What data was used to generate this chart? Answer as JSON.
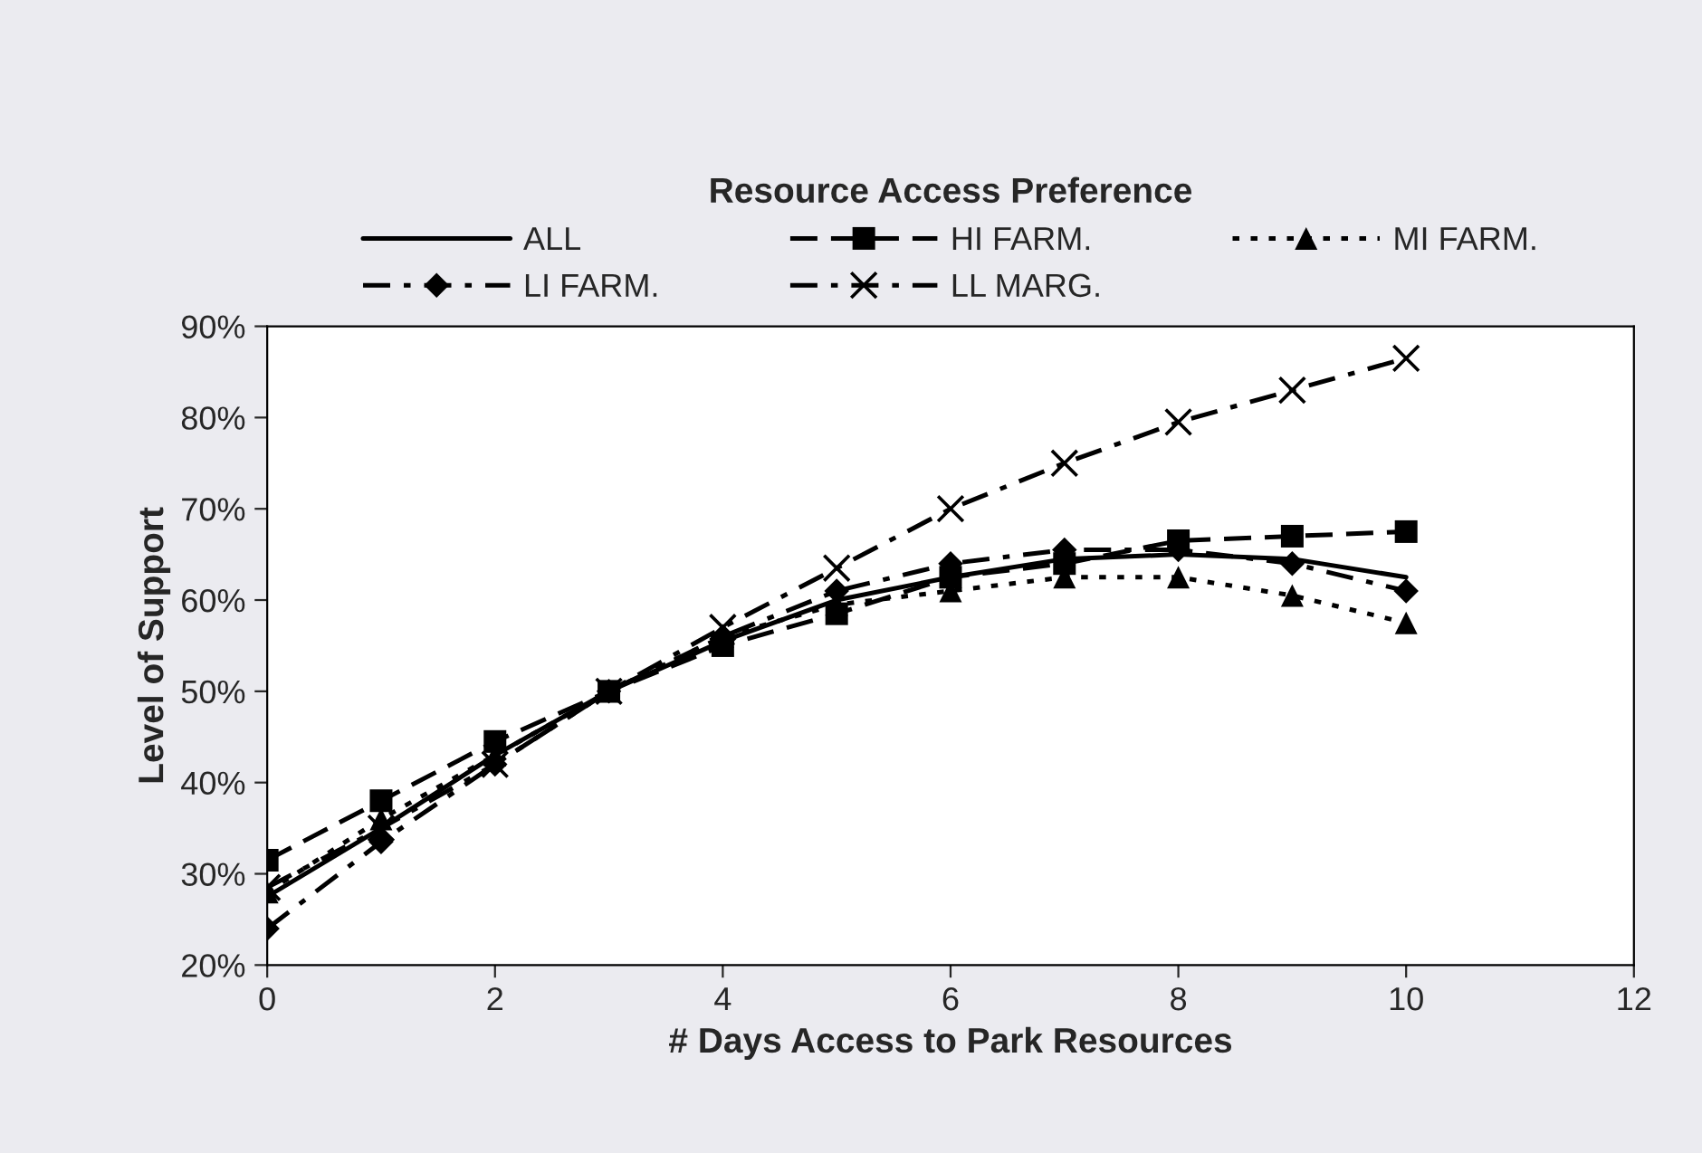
{
  "chart_data": {
    "type": "line",
    "legend_title": "Resource Access Preference",
    "xlabel": "# Days Access to Park Resources",
    "ylabel": "Level of Support",
    "x": [
      0,
      1,
      2,
      3,
      4,
      5,
      6,
      7,
      8,
      9,
      10
    ],
    "xlim": [
      0,
      12
    ],
    "xticks": [
      0,
      2,
      4,
      6,
      8,
      10,
      12
    ],
    "ylim": [
      20,
      90
    ],
    "yticks": [
      {
        "value": 20,
        "label": "20%"
      },
      {
        "value": 30,
        "label": "30%"
      },
      {
        "value": 40,
        "label": "40%"
      },
      {
        "value": 50,
        "label": "50%"
      },
      {
        "value": 60,
        "label": "60%"
      },
      {
        "value": 70,
        "label": "70%"
      },
      {
        "value": 80,
        "label": "80%"
      },
      {
        "value": 90,
        "label": "90%"
      }
    ],
    "grid": false,
    "legend": "top",
    "series": [
      {
        "name": "ALL",
        "color": "#000000",
        "marker": "none",
        "line_style": "solid",
        "values": [
          27.5,
          35,
          43,
          50,
          55.5,
          60,
          62.5,
          64.5,
          65,
          64.5,
          62.5
        ]
      },
      {
        "name": "HI FARM.",
        "color": "#000000",
        "marker": "square",
        "line_style": "dashed",
        "values": [
          31.5,
          38,
          44.5,
          50,
          55,
          58.5,
          62.5,
          64,
          66.5,
          67,
          67.5
        ]
      },
      {
        "name": "MI FARM.",
        "color": "#000000",
        "marker": "triangle",
        "line_style": "dotted",
        "values": [
          28,
          36,
          43,
          50,
          56,
          59.5,
          61,
          62.5,
          62.5,
          60.5,
          57.5
        ]
      },
      {
        "name": "LI FARM.",
        "color": "#000000",
        "marker": "diamond",
        "line_style": "dashdot",
        "values": [
          24,
          33.5,
          42,
          50,
          56,
          61,
          64,
          65.5,
          65.5,
          64,
          61
        ]
      },
      {
        "name": "LL MARG.",
        "color": "#000000",
        "marker": "cross",
        "line_style": "dashdot",
        "values": [
          28.5,
          35,
          42,
          50,
          57,
          63.5,
          70,
          75,
          79.5,
          83,
          86.5
        ]
      }
    ]
  }
}
